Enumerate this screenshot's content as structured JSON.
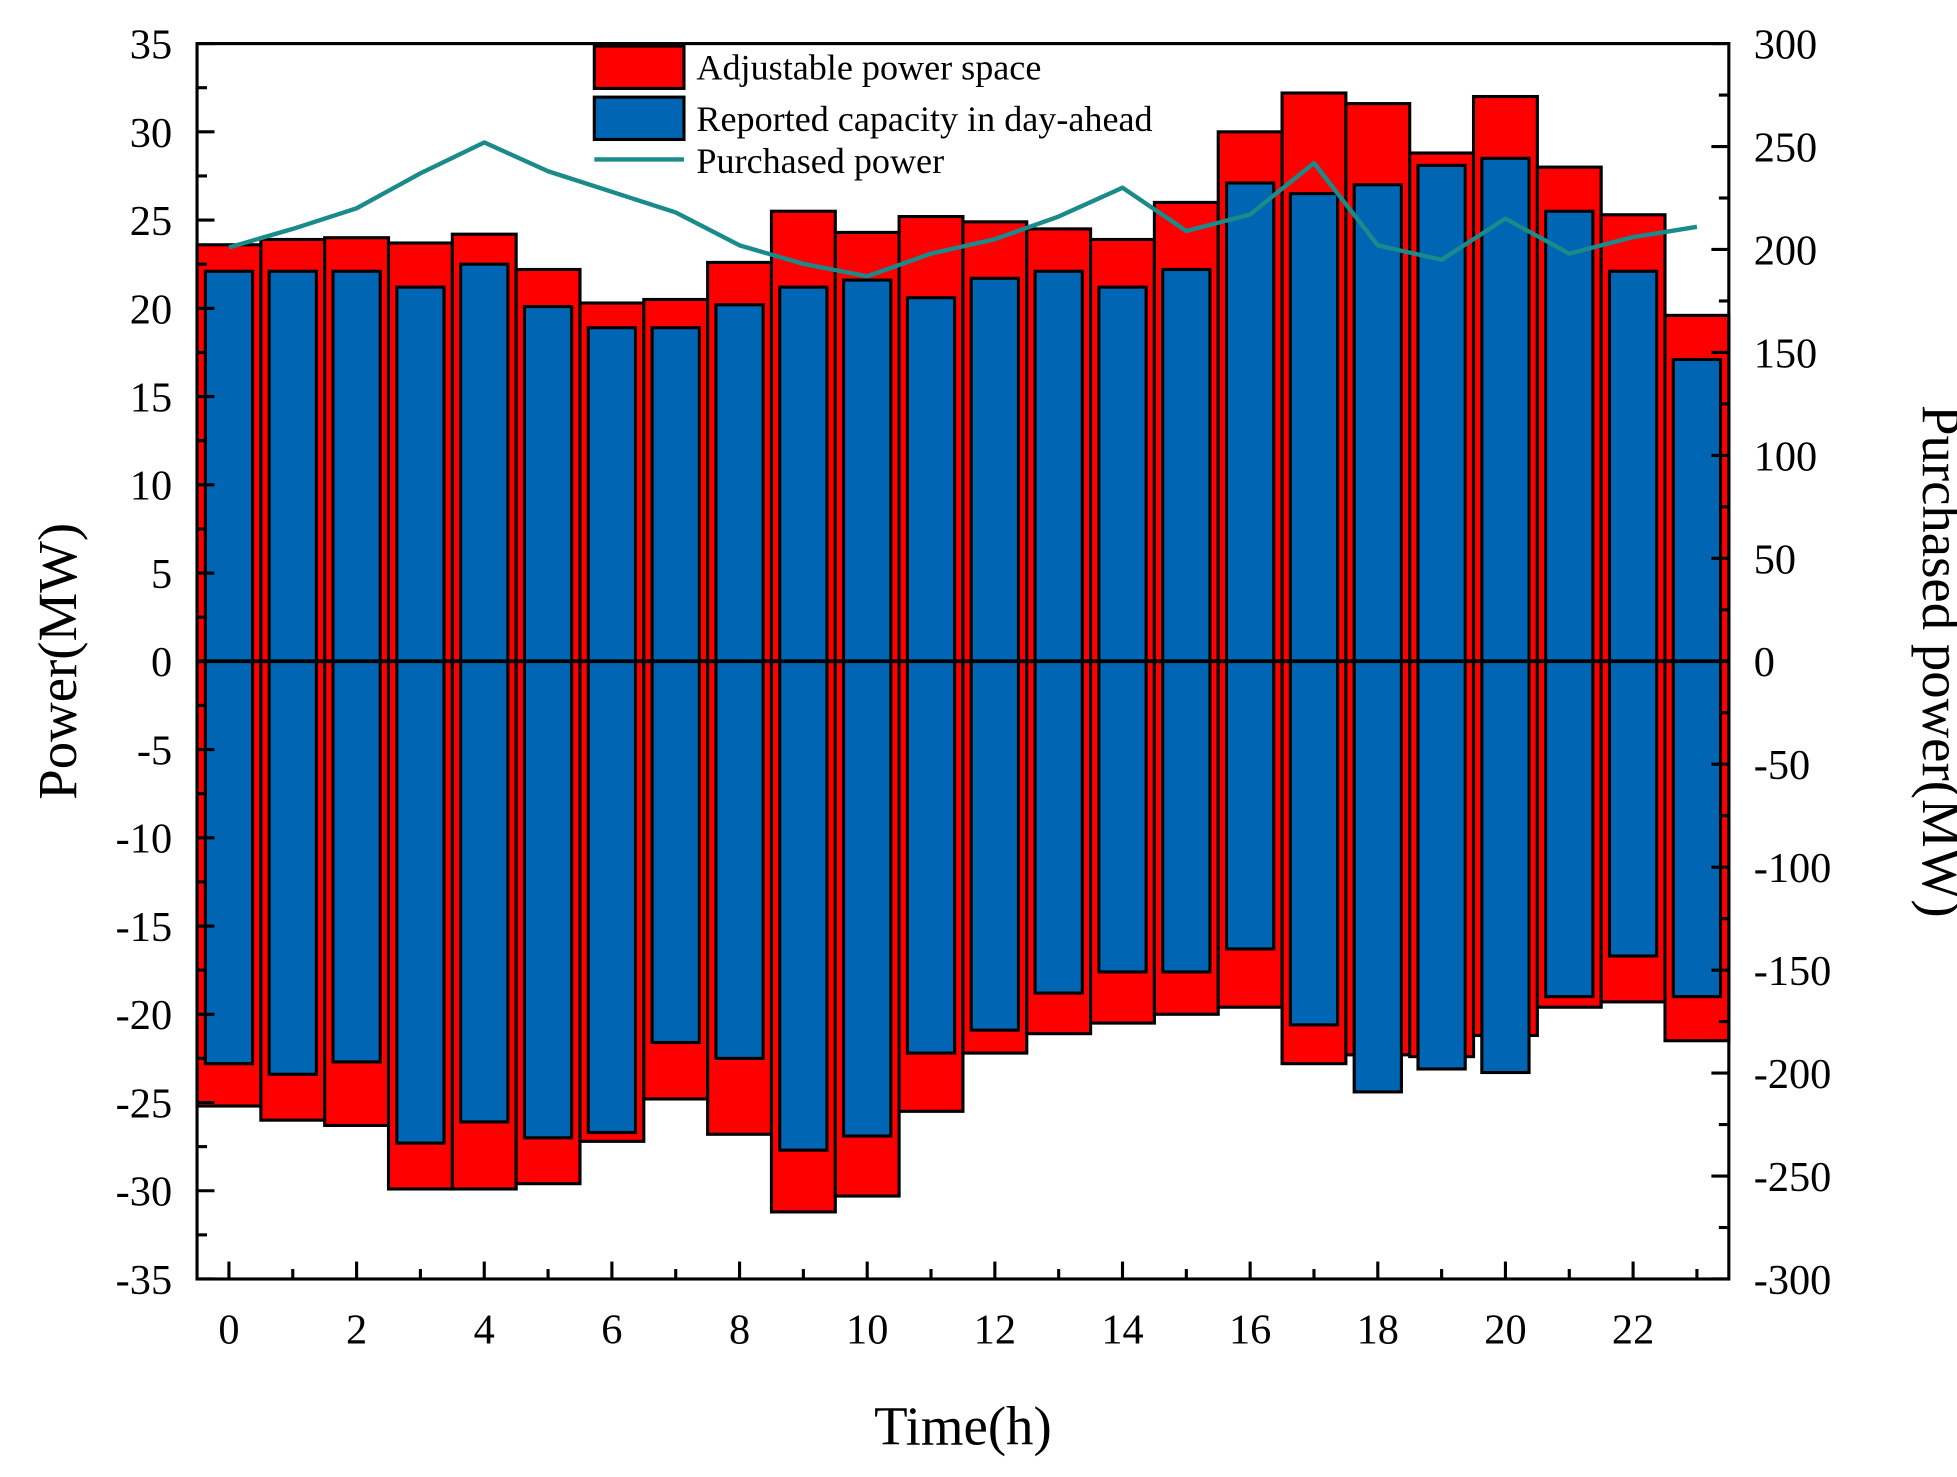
{
  "chart_data": {
    "type": "bar",
    "title": "",
    "xlabel": "Time(h)",
    "ylabel_left": "Power(MW)",
    "ylabel_right": "Purchased power(MW)",
    "x": [
      0,
      1,
      2,
      3,
      4,
      5,
      6,
      7,
      8,
      9,
      10,
      11,
      12,
      13,
      14,
      15,
      16,
      17,
      18,
      19,
      20,
      21,
      22,
      23
    ],
    "xlim": [
      -0.5,
      23.5
    ],
    "x_tick_values": [
      0,
      2,
      4,
      6,
      8,
      10,
      12,
      14,
      16,
      18,
      20,
      22
    ],
    "x_tick_labels": [
      "0",
      "2",
      "4",
      "6",
      "8",
      "10",
      "12",
      "14",
      "16",
      "18",
      "20",
      "22"
    ],
    "ylim_left": [
      -35,
      35
    ],
    "y_left_tick_values": [
      35,
      30,
      25,
      20,
      15,
      10,
      5,
      0,
      -5,
      -10,
      -15,
      -20,
      -25,
      -30,
      -35
    ],
    "y_left_tick_labels": [
      "35",
      "30",
      "25",
      "20",
      "15",
      "10",
      "5",
      "0",
      "-5",
      "-10",
      "-15",
      "-20",
      "-25",
      "-30",
      "-35"
    ],
    "ylim_right": [
      -300,
      300
    ],
    "y_right_tick_values": [
      300,
      250,
      200,
      150,
      100,
      50,
      0,
      -50,
      -100,
      -150,
      -200,
      -250,
      -300
    ],
    "y_right_tick_labels": [
      "300",
      "250",
      "200",
      "150",
      "100",
      "50",
      "0",
      "-50",
      "-100",
      "-150",
      "-200",
      "-250",
      "-300"
    ],
    "grid": false,
    "legend_position": "top-center",
    "series": [
      {
        "name": "Adjustable power space",
        "kind": "bar-range",
        "axis": "left",
        "color": "#ff0000",
        "upper": [
          23.6,
          23.9,
          24.0,
          23.7,
          24.2,
          22.2,
          20.3,
          20.5,
          22.6,
          25.5,
          24.3,
          25.2,
          24.9,
          24.5,
          23.9,
          26.0,
          30.0,
          32.2,
          31.6,
          28.8,
          32.0,
          28.0,
          25.3,
          19.6
        ],
        "lower": [
          -25.2,
          -26.0,
          -26.3,
          -29.9,
          -29.9,
          -29.6,
          -27.2,
          -24.8,
          -26.8,
          -31.2,
          -30.3,
          -25.5,
          -22.2,
          -21.1,
          -20.5,
          -20.0,
          -19.6,
          -22.8,
          -22.3,
          -22.4,
          -21.2,
          -19.6,
          -19.3,
          -21.5
        ]
      },
      {
        "name": "Reported capacity in day-ahead",
        "kind": "bar-range",
        "axis": "left",
        "color": "#0066b3",
        "upper": [
          22.1,
          22.1,
          22.1,
          21.2,
          22.5,
          20.1,
          18.9,
          18.9,
          20.2,
          21.2,
          21.6,
          20.6,
          21.7,
          22.1,
          21.2,
          22.2,
          27.1,
          26.5,
          27.0,
          28.1,
          28.5,
          25.5,
          22.1,
          17.1
        ],
        "lower": [
          -22.8,
          -23.4,
          -22.7,
          -27.3,
          -26.1,
          -27.0,
          -26.7,
          -21.6,
          -22.5,
          -27.7,
          -26.9,
          -22.2,
          -20.9,
          -18.8,
          -17.6,
          -17.6,
          -16.3,
          -20.6,
          -24.4,
          -23.1,
          -23.3,
          -19.0,
          -16.7,
          -19.0
        ]
      },
      {
        "name": "Purchased power",
        "kind": "line",
        "axis": "right",
        "color": "#1a8a8a",
        "values": [
          201,
          210,
          220,
          237,
          252,
          238,
          228,
          218,
          202,
          193,
          187,
          198,
          205,
          216,
          230,
          209,
          217,
          242,
          202,
          195,
          215,
          198,
          206,
          211
        ]
      }
    ]
  }
}
